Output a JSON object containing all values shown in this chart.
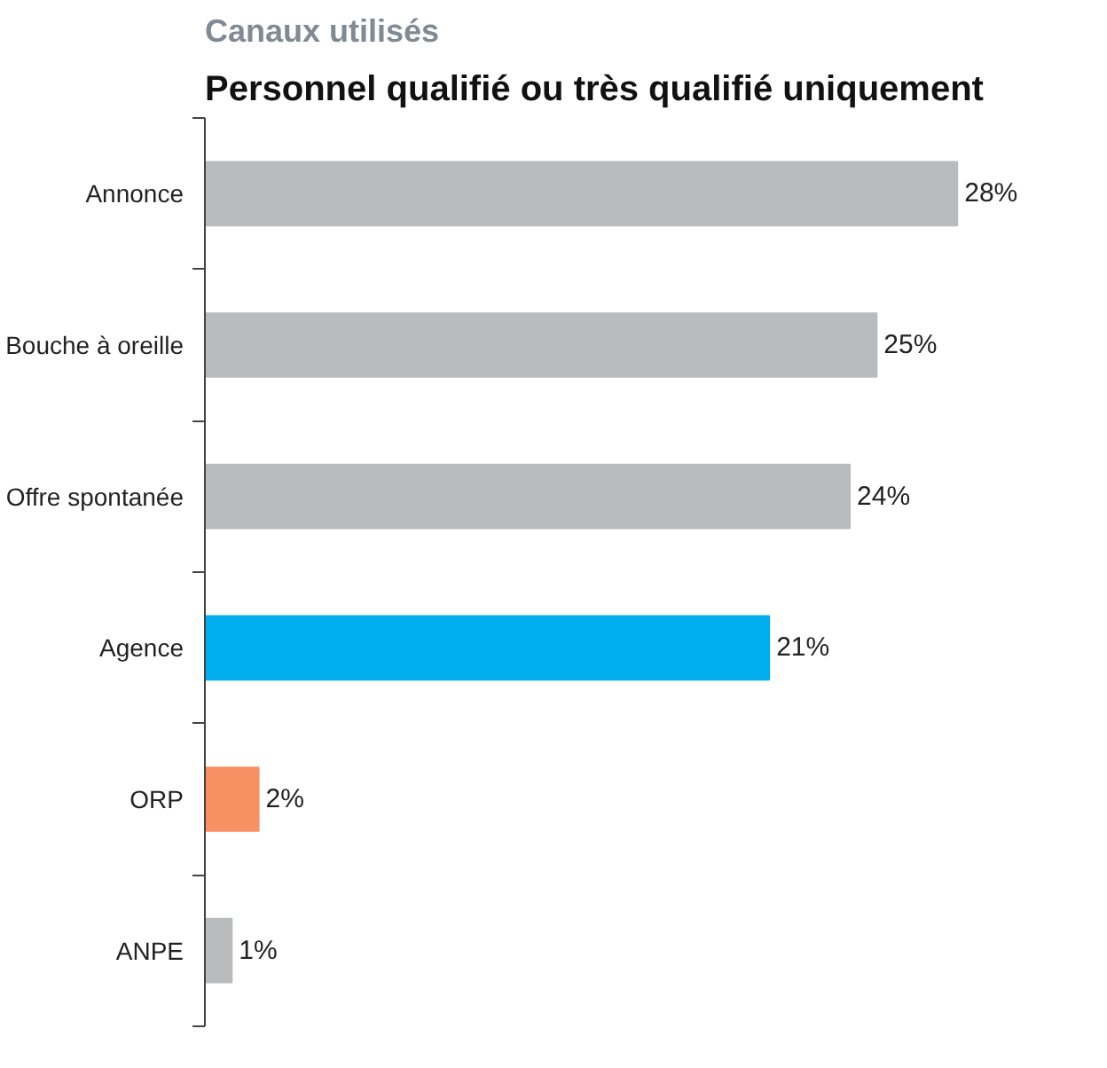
{
  "chart_data": {
    "type": "bar",
    "orientation": "horizontal",
    "title": "Canaux utilisés",
    "subtitle": "Personnel qualifié ou très qualifié uniquement",
    "categories": [
      "Annonce",
      "Bouche à oreille",
      "Offre spontanée",
      "Agence",
      "ORP",
      "ANPE"
    ],
    "values": [
      28,
      25,
      24,
      21,
      2,
      1
    ],
    "colors": [
      "#b9bbbd",
      "#b9bbbd",
      "#b9bbbd",
      "#00aeef",
      "#f79163",
      "#b9bbbd"
    ],
    "value_labels": [
      "28%",
      "25%",
      "24%",
      "21%",
      "2%",
      "1%"
    ],
    "grid": false
  }
}
